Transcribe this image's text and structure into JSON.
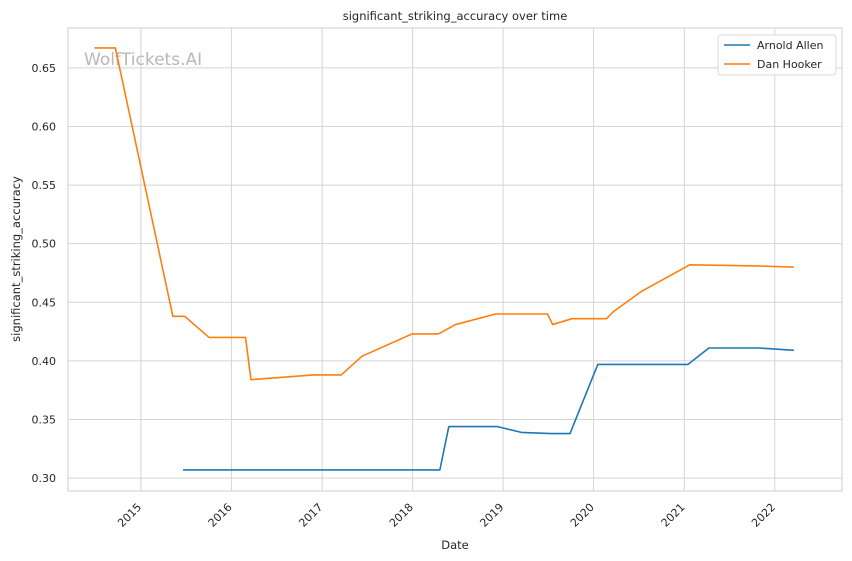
{
  "chart_data": {
    "type": "line",
    "title": "significant_striking_accuracy over time",
    "xlabel": "Date",
    "ylabel": "significant_striking_accuracy",
    "watermark": "WolfTickets.AI",
    "xlim": [
      "2014-03-13",
      "2022-09-29"
    ],
    "ylim": [
      0.289,
      0.684
    ],
    "x_ticks": [
      "2015-01-01",
      "2016-01-01",
      "2017-01-01",
      "2018-01-01",
      "2019-01-01",
      "2020-01-01",
      "2021-01-01",
      "2022-01-01"
    ],
    "x_tick_labels": [
      "2015",
      "2016",
      "2017",
      "2018",
      "2019",
      "2020",
      "2021",
      "2022"
    ],
    "y_ticks": [
      0.3,
      0.35,
      0.4,
      0.45,
      0.5,
      0.55,
      0.6,
      0.65
    ],
    "y_tick_labels": [
      "0.30",
      "0.35",
      "0.40",
      "0.45",
      "0.50",
      "0.55",
      "0.60",
      "0.65"
    ],
    "grid": true,
    "legend_position": "top-right",
    "series": [
      {
        "name": "Arnold Allen",
        "color": "#1f77b4",
        "points": [
          [
            "2015-06-20",
            0.307
          ],
          [
            "2016-07-20",
            0.307
          ],
          [
            "2017-03-18",
            0.307
          ],
          [
            "2018-04-21",
            0.307
          ],
          [
            "2018-05-27",
            0.344
          ],
          [
            "2018-12-08",
            0.344
          ],
          [
            "2019-03-16",
            0.339
          ],
          [
            "2019-07-13",
            0.338
          ],
          [
            "2019-09-28",
            0.338
          ],
          [
            "2020-01-18",
            0.397
          ],
          [
            "2020-07-16",
            0.397
          ],
          [
            "2021-01-16",
            0.397
          ],
          [
            "2021-04-10",
            0.411
          ],
          [
            "2021-07-17",
            0.411
          ],
          [
            "2021-10-30",
            0.411
          ],
          [
            "2022-03-19",
            0.409
          ]
        ]
      },
      {
        "name": "Dan Hooker",
        "color": "#ff7f0e",
        "points": [
          [
            "2014-06-28",
            0.667
          ],
          [
            "2014-09-20",
            0.667
          ],
          [
            "2015-05-10",
            0.438
          ],
          [
            "2015-06-27",
            0.438
          ],
          [
            "2015-10-03",
            0.42
          ],
          [
            "2016-02-27",
            0.42
          ],
          [
            "2016-03-20",
            0.384
          ],
          [
            "2016-11-26",
            0.388
          ],
          [
            "2017-03-19",
            0.388
          ],
          [
            "2017-06-11",
            0.404
          ],
          [
            "2017-12-30",
            0.423
          ],
          [
            "2018-04-15",
            0.423
          ],
          [
            "2018-06-23",
            0.431
          ],
          [
            "2018-12-02",
            0.44
          ],
          [
            "2019-06-29",
            0.44
          ],
          [
            "2019-07-20",
            0.431
          ],
          [
            "2019-10-06",
            0.436
          ],
          [
            "2020-02-22",
            0.436
          ],
          [
            "2020-03-21",
            0.442
          ],
          [
            "2020-07-10",
            0.459
          ],
          [
            "2021-01-23",
            0.482
          ],
          [
            "2021-10-23",
            0.481
          ],
          [
            "2022-03-19",
            0.48
          ]
        ]
      }
    ]
  }
}
